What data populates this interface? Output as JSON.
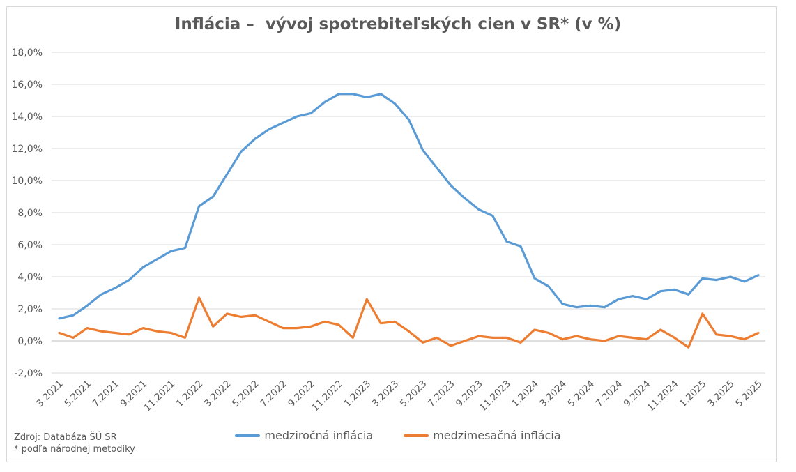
{
  "chart_data": {
    "type": "line",
    "title": "Inflácia –  vývoj spotrebiteľských cien v SR* (v %)",
    "ylim": [
      -2,
      18
    ],
    "yticks": [
      "-2,0%",
      "0,0%",
      "2,0%",
      "4,0%",
      "6,0%",
      "8,0%",
      "10,0%",
      "12,0%",
      "14,0%",
      "16,0%",
      "18,0%"
    ],
    "ytick_values": [
      -2,
      0,
      2,
      4,
      6,
      8,
      10,
      12,
      14,
      16,
      18
    ],
    "grid": true,
    "legend_position": "bottom",
    "categories": [
      "3.2021",
      "4.2021",
      "5.2021",
      "6.2021",
      "7.2021",
      "8.2021",
      "9.2021",
      "10.2021",
      "11.2021",
      "12.2021",
      "1.2022",
      "2.2022",
      "3.2022",
      "4.2022",
      "5.2022",
      "6.2022",
      "7.2022",
      "8.2022",
      "9.2022",
      "10.2022",
      "11.2022",
      "12.2022",
      "1.2023",
      "2.2023",
      "3.2023",
      "4.2023",
      "5.2023",
      "6.2023",
      "7.2023",
      "8.2023",
      "9.2023",
      "10.2023",
      "11.2023",
      "12.2023",
      "1.2024",
      "2.2024",
      "3.2024",
      "4.2024",
      "5.2024",
      "6.2024",
      "7.2024",
      "8.2024",
      "9.2024",
      "10.2024",
      "11.2024",
      "12.2024",
      "1.2025",
      "2.2025",
      "3.2025",
      "4.2025",
      "5.2025"
    ],
    "xtick_labels": [
      "3.2021",
      "5.2021",
      "7.2021",
      "9.2021",
      "11.2021",
      "1.2022",
      "3.2022",
      "5.2022",
      "7.2022",
      "9.2022",
      "11.2022",
      "1.2023",
      "3.2023",
      "5.2023",
      "7.2023",
      "9.2023",
      "11.2023",
      "1.2024",
      "3.2024",
      "5.2024",
      "7.2024",
      "9.2024",
      "11.2024",
      "1.2025",
      "3.2025",
      "5.2025"
    ],
    "series": [
      {
        "name": "medziročná inflácia",
        "color": "#5b9bd5",
        "values": [
          1.4,
          1.6,
          2.2,
          2.9,
          3.3,
          3.8,
          4.6,
          5.1,
          5.6,
          5.8,
          8.4,
          9.0,
          10.4,
          11.8,
          12.6,
          13.2,
          13.6,
          14.0,
          14.2,
          14.9,
          15.4,
          15.4,
          15.2,
          15.4,
          14.8,
          13.8,
          11.9,
          10.8,
          9.7,
          8.9,
          8.2,
          7.8,
          6.2,
          5.9,
          3.9,
          3.4,
          2.3,
          2.1,
          2.2,
          2.1,
          2.6,
          2.8,
          2.6,
          3.1,
          3.2,
          2.9,
          3.9,
          3.8,
          4.0,
          3.7,
          4.1
        ]
      },
      {
        "name": "medzimesačná inflácia",
        "color": "#ed7d31",
        "values": [
          0.5,
          0.2,
          0.8,
          0.6,
          0.5,
          0.4,
          0.8,
          0.6,
          0.5,
          0.2,
          2.7,
          0.9,
          1.7,
          1.5,
          1.6,
          1.2,
          0.8,
          0.8,
          0.9,
          1.2,
          1.0,
          0.2,
          2.6,
          1.1,
          1.2,
          0.6,
          -0.1,
          0.2,
          -0.3,
          0.0,
          0.3,
          0.2,
          0.2,
          -0.1,
          0.7,
          0.5,
          0.1,
          0.3,
          0.1,
          0.0,
          0.3,
          0.2,
          0.1,
          0.7,
          0.2,
          -0.4,
          1.7,
          0.4,
          0.3,
          0.1,
          0.5
        ]
      }
    ]
  },
  "source": {
    "line1": "Zdroj: Databáza ŠÚ SR",
    "line2": "* podľa národnej metodiky"
  }
}
